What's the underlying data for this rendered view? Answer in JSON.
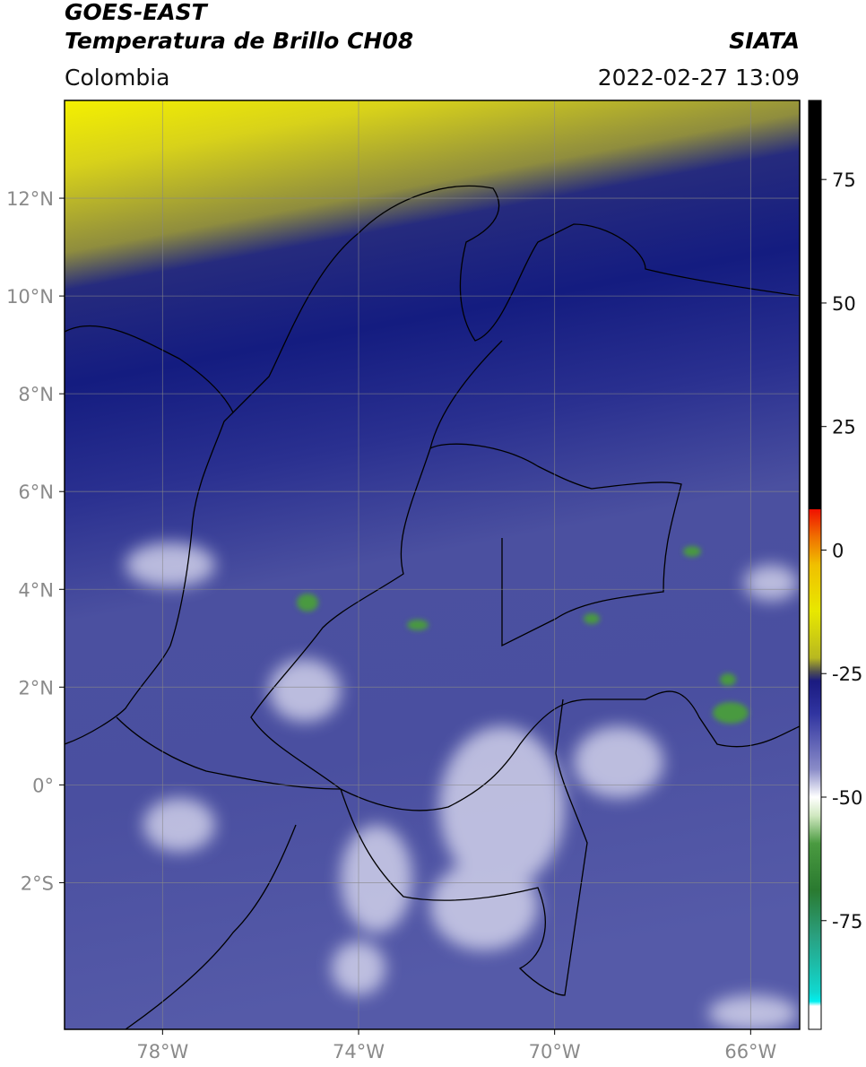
{
  "header": {
    "satellite": "GOES-EAST",
    "product": "Temperatura de Brillo CH08",
    "source": "SIATA",
    "region": "Colombia",
    "datetime": "2022-02-27 13:09"
  },
  "map": {
    "xlim": [
      -80,
      -65
    ],
    "ylim": [
      -5,
      14
    ],
    "xticks": [
      {
        "value": -78,
        "label": "78°W"
      },
      {
        "value": -74,
        "label": "74°W"
      },
      {
        "value": -70,
        "label": "70°W"
      },
      {
        "value": -66,
        "label": "66°W"
      }
    ],
    "yticks": [
      {
        "value": 12,
        "label": "12°N"
      },
      {
        "value": 10,
        "label": "10°N"
      },
      {
        "value": 8,
        "label": "8°N"
      },
      {
        "value": 6,
        "label": "6°N"
      },
      {
        "value": 4,
        "label": "4°N"
      },
      {
        "value": 2,
        "label": "2°N"
      },
      {
        "value": 0,
        "label": "0°"
      },
      {
        "value": -2,
        "label": "2°S"
      }
    ]
  },
  "colorbar": {
    "lim": [
      -97,
      91
    ],
    "ticks": [
      75,
      50,
      25,
      0,
      -25,
      -50,
      -75
    ]
  }
}
